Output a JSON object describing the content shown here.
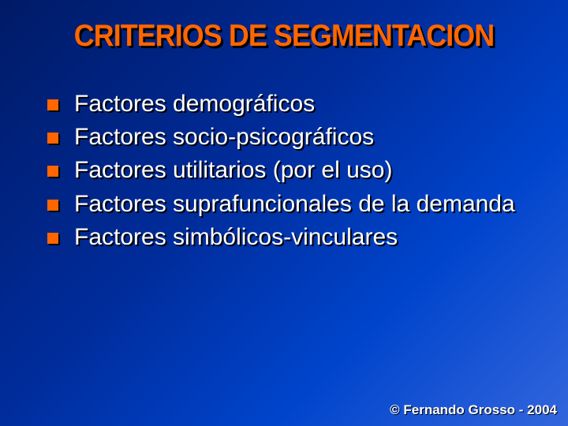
{
  "slide": {
    "title": "CRITERIOS DE SEGMENTACION",
    "bullets": [
      "Factores demográficos",
      "Factores socio-psicográficos",
      "Factores utilitarios (por el uso)",
      "Factores suprafuncionales de la demanda",
      "Factores simbólicos-vinculares"
    ],
    "footer": "© Fernando Grosso - 2004"
  },
  "style": {
    "background_gradient": [
      "#001a66",
      "#002b99",
      "#0044cc",
      "#3366dd"
    ],
    "title_color": "#ff6600",
    "title_fontsize": 39,
    "title_shadow": "#000000",
    "bullet_text_color": "#ffffff",
    "bullet_text_fontsize": 30,
    "bullet_marker_color": "#ff6600",
    "bullet_marker_size": 14,
    "text_shadow_color": "#000000",
    "footer_color": "#ffffff",
    "footer_fontsize": 17
  }
}
